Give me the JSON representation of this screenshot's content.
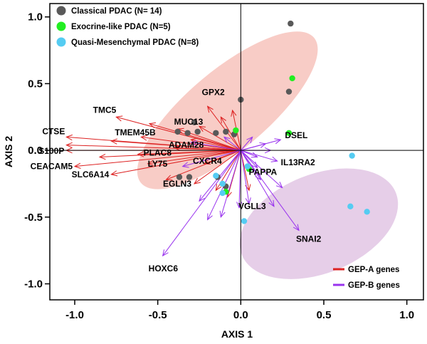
{
  "chart_data": {
    "type": "scatter",
    "xlabel": "AXIS 1",
    "ylabel": "AXIS 2",
    "xlim": [
      -1.15,
      1.1
    ],
    "ylim": [
      -1.12,
      1.1
    ],
    "x_ticks": [
      -1.0,
      -0.5,
      0.0,
      0.5,
      1.0
    ],
    "y_ticks": [
      -1.0,
      -0.5,
      0.0,
      0.5,
      1.0
    ],
    "x_tick_labels": [
      "-1.0",
      "-0.5",
      "0.0",
      "0.5",
      "1.0"
    ],
    "y_tick_labels": [
      "-1.0",
      "-0.5",
      "0.0",
      "0.5",
      "1.0"
    ],
    "grid": false,
    "reference_lines": {
      "x": 0,
      "y": 0
    },
    "point_legend_placement": "top-left",
    "arrow_legend_placement": "bottom-right",
    "point_series": [
      {
        "name": "Classical PDAC (N= 14)",
        "color": "#595959",
        "points": [
          [
            0.3,
            0.95
          ],
          [
            0.29,
            0.44
          ],
          [
            0.0,
            0.38
          ],
          [
            -0.38,
            0.14
          ],
          [
            -0.32,
            0.13
          ],
          [
            -0.26,
            0.14
          ],
          [
            -0.15,
            0.13
          ],
          [
            -0.04,
            0.12
          ],
          [
            -0.09,
            0.14
          ],
          [
            -0.28,
            0.21
          ],
          [
            -0.37,
            -0.2
          ],
          [
            -0.31,
            -0.2
          ],
          [
            -0.14,
            -0.2
          ],
          [
            -0.09,
            -0.27
          ]
        ]
      },
      {
        "name": "Exocrine-like PDAC (N=5)",
        "color": "#22ee22",
        "points": [
          [
            0.31,
            0.54
          ],
          [
            0.29,
            0.13
          ],
          [
            -0.03,
            0.15
          ],
          [
            -0.09,
            -0.31
          ],
          [
            0.05,
            -0.14
          ]
        ]
      },
      {
        "name": "Quasi-Mesenchymal PDAC (N=8)",
        "color": "#55ccf2",
        "points": [
          [
            0.67,
            -0.04
          ],
          [
            0.66,
            -0.42
          ],
          [
            0.76,
            -0.46
          ],
          [
            0.02,
            -0.53
          ],
          [
            -0.11,
            -0.32
          ],
          [
            -0.15,
            -0.19
          ],
          [
            -0.11,
            -0.25
          ],
          [
            0.04,
            -0.12
          ]
        ]
      }
    ],
    "arrow_series": [
      {
        "name": "GEP-A genes",
        "color": "#dd2222",
        "vectors": [
          {
            "gene": "TMC5",
            "x": -0.75,
            "y": 0.25
          },
          {
            "gene": "CTSE",
            "x": -1.05,
            "y": 0.1
          },
          {
            "gene": "TMEM45B",
            "x": -0.78,
            "y": 0.07
          },
          {
            "gene": "S100P",
            "x": -1.05,
            "y": 0.0
          },
          {
            "gene": "CEACAM5",
            "x": -1.0,
            "y": -0.12
          },
          {
            "gene": "PLAC8",
            "x": -0.62,
            "y": -0.03
          },
          {
            "gene": "LY75",
            "x": -0.56,
            "y": -0.1
          },
          {
            "gene": "SLC6A14",
            "x": -0.78,
            "y": -0.18
          },
          {
            "gene": "MUC13",
            "x": -0.38,
            "y": 0.16
          },
          {
            "gene": "GPX2",
            "x": -0.2,
            "y": 0.33
          },
          {
            "gene": "ADAM28",
            "x": -0.4,
            "y": 0.02
          },
          {
            "gene": "CXCR4",
            "x": -0.22,
            "y": -0.1
          },
          {
            "gene": "EGLN3",
            "x": -0.28,
            "y": -0.25
          },
          {
            "gene": "",
            "x": -1.05,
            "y": 0.04
          },
          {
            "gene": "",
            "x": -0.85,
            "y": -0.05
          },
          {
            "gene": "",
            "x": -0.55,
            "y": 0.2
          },
          {
            "gene": "",
            "x": -0.45,
            "y": -0.22
          },
          {
            "gene": "",
            "x": -0.12,
            "y": 0.25
          },
          {
            "gene": "",
            "x": -0.05,
            "y": 0.3
          },
          {
            "gene": "",
            "x": -0.3,
            "y": 0.08
          },
          {
            "gene": "",
            "x": -0.15,
            "y": -0.3
          },
          {
            "gene": "",
            "x": -0.08,
            "y": -0.35
          },
          {
            "gene": "",
            "x": 0.05,
            "y": -0.3
          },
          {
            "gene": "",
            "x": -0.6,
            "y": 0.1
          },
          {
            "gene": "",
            "x": -0.25,
            "y": 0.18
          }
        ]
      },
      {
        "name": "GEP-B genes",
        "color": "#9933ee",
        "vectors": [
          {
            "gene": "DSEL",
            "x": 0.24,
            "y": 0.08
          },
          {
            "gene": "IL13RA2",
            "x": 0.22,
            "y": -0.08
          },
          {
            "gene": "PAPPA",
            "x": 0.1,
            "y": -0.13
          },
          {
            "gene": "VGLL3",
            "x": -0.01,
            "y": -0.43
          },
          {
            "gene": "SNAI2",
            "x": 0.35,
            "y": -0.6
          },
          {
            "gene": "HOXC6",
            "x": -0.47,
            "y": -0.79
          },
          {
            "gene": "",
            "x": -0.2,
            "y": -0.52
          },
          {
            "gene": "",
            "x": -0.12,
            "y": -0.5
          },
          {
            "gene": "",
            "x": 0.2,
            "y": -0.42
          },
          {
            "gene": "",
            "x": 0.25,
            "y": -0.28
          },
          {
            "gene": "",
            "x": 0.15,
            "y": 0.05
          },
          {
            "gene": "",
            "x": 0.1,
            "y": -0.05
          },
          {
            "gene": "",
            "x": 0.12,
            "y": -0.22
          },
          {
            "gene": "",
            "x": 0.07,
            "y": 0.1
          },
          {
            "gene": "",
            "x": -0.3,
            "y": 0.06
          },
          {
            "gene": "",
            "x": -0.35,
            "y": -0.12
          },
          {
            "gene": "",
            "x": -0.25,
            "y": -0.38
          },
          {
            "gene": "",
            "x": -0.1,
            "y": 0.1
          },
          {
            "gene": "",
            "x": 0.05,
            "y": -0.4
          },
          {
            "gene": "",
            "x": 0.18,
            "y": 0.0
          }
        ]
      }
    ],
    "ellipses": [
      {
        "group": "Classical PDAC (N= 14)",
        "color": "#f4aaa0",
        "opacity": 0.6,
        "cx": -0.08,
        "cy": 0.3,
        "rx": 0.68,
        "ry": 0.3,
        "angle_deg": 40
      },
      {
        "group": "Quasi-Mesenchymal PDAC (N=8)",
        "color": "#d8b4dc",
        "opacity": 0.65,
        "cx": 0.47,
        "cy": -0.55,
        "rx": 0.5,
        "ry": 0.37,
        "angle_deg": 22
      }
    ]
  }
}
